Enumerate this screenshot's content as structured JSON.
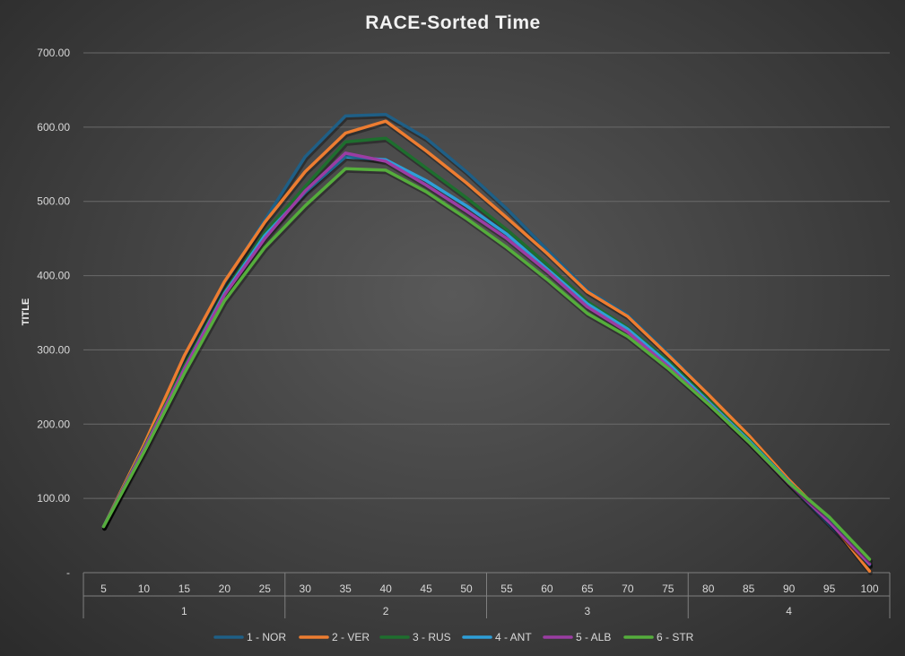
{
  "chart_data": {
    "type": "line",
    "title": "RACE-Sorted Time",
    "ylabel": "TITLE",
    "xlabel": "",
    "ylim": [
      0,
      700
    ],
    "y_ticks": [
      "-",
      "100.00",
      "200.00",
      "300.00",
      "400.00",
      "500.00",
      "600.00",
      "700.00"
    ],
    "x": [
      5,
      10,
      15,
      20,
      25,
      30,
      35,
      40,
      45,
      50,
      55,
      60,
      65,
      70,
      75,
      80,
      85,
      90,
      95,
      100
    ],
    "x_labels": [
      "5",
      "10",
      "15",
      "20",
      "25",
      "30",
      "35",
      "40",
      "45",
      "50",
      "55",
      "60",
      "65",
      "70",
      "75",
      "80",
      "85",
      "90",
      "95",
      "100"
    ],
    "groups": [
      {
        "label": "1",
        "span": [
          0,
          4
        ]
      },
      {
        "label": "2",
        "span": [
          5,
          9
        ]
      },
      {
        "label": "3",
        "span": [
          10,
          14
        ]
      },
      {
        "label": "4",
        "span": [
          15,
          19
        ]
      }
    ],
    "grid": true,
    "legend_position": "bottom",
    "series": [
      {
        "name": "1 - NOR",
        "color": "#1f5f86",
        "values": [
          62,
          172,
          290,
          390,
          475,
          560,
          615,
          617,
          585,
          540,
          490,
          435,
          380,
          347,
          295,
          240,
          180,
          120,
          65,
          10
        ]
      },
      {
        "name": "2 - VER",
        "color": "#ed7d31",
        "values": [
          62,
          172,
          292,
          392,
          472,
          540,
          592,
          608,
          568,
          525,
          478,
          430,
          378,
          345,
          293,
          240,
          185,
          125,
          70,
          2
        ]
      },
      {
        "name": "3 - RUS",
        "color": "#1e6e2e",
        "values": [
          62,
          168,
          278,
          378,
          458,
          520,
          580,
          585,
          545,
          505,
          462,
          415,
          365,
          330,
          285,
          233,
          180,
          122,
          72,
          14
        ]
      },
      {
        "name": "4 - ANT",
        "color": "#2e9fd8",
        "values": [
          62,
          166,
          274,
          376,
          454,
          512,
          560,
          556,
          528,
          494,
          456,
          409,
          362,
          328,
          282,
          230,
          178,
          122,
          70,
          11
        ]
      },
      {
        "name": "5 - ALB",
        "color": "#9b3da3",
        "values": [
          62,
          166,
          274,
          374,
          450,
          514,
          565,
          554,
          522,
          487,
          450,
          406,
          358,
          324,
          278,
          228,
          176,
          120,
          68,
          12
        ]
      },
      {
        "name": "6 - STR",
        "color": "#55ad3c",
        "values": [
          62,
          162,
          268,
          366,
          438,
          494,
          544,
          542,
          513,
          477,
          438,
          395,
          349,
          318,
          275,
          227,
          176,
          121,
          75,
          18
        ]
      }
    ]
  }
}
